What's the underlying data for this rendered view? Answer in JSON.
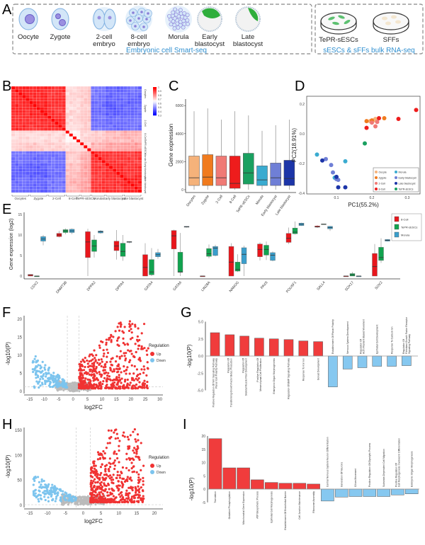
{
  "panels": {
    "A": "A",
    "B": "B",
    "C": "C",
    "D": "D",
    "E": "E",
    "F": "F",
    "G": "G",
    "H": "H",
    "I": "I"
  },
  "panel_a": {
    "stages": [
      {
        "line1": "Oocyte",
        "line2": ""
      },
      {
        "line1": "Zygote",
        "line2": ""
      },
      {
        "line1": "2-cell",
        "line2": "embryo"
      },
      {
        "line1": "8-cell",
        "line2": "embryo"
      },
      {
        "line1": "Morula",
        "line2": ""
      },
      {
        "line1": "Early",
        "line2": "blastocyst"
      },
      {
        "line1": "Late",
        "line2": "blastocyst"
      }
    ],
    "cultures": [
      "TePR-sESCs",
      "SFFs"
    ],
    "caption_left": "Embryonic cell Smart-seq",
    "caption_right": "sESCs & sFFs bulk RNA-seq",
    "caption_color": "#2f8fd0"
  },
  "chart_data": [
    {
      "id": "B",
      "type": "heatmap",
      "groups": [
        "Oocytes",
        "Zygote",
        "2-Cell",
        "8-Cell",
        "TePR-sESCs",
        "Morula",
        "Early blastocyst",
        "Late blastocyst"
      ],
      "group_sizes": [
        5,
        5,
        5,
        4,
        3,
        4,
        5,
        5
      ],
      "block_correlation": [
        [
          0.95,
          0.94,
          0.93,
          0.7,
          0.72,
          0.46,
          0.44,
          0.45
        ],
        [
          0.94,
          0.95,
          0.93,
          0.7,
          0.72,
          0.45,
          0.43,
          0.44
        ],
        [
          0.93,
          0.93,
          0.94,
          0.7,
          0.72,
          0.46,
          0.45,
          0.46
        ],
        [
          0.7,
          0.7,
          0.7,
          0.66,
          0.7,
          0.72,
          0.74,
          0.75
        ],
        [
          0.72,
          0.72,
          0.72,
          0.7,
          0.7,
          0.76,
          0.77,
          0.78
        ],
        [
          0.46,
          0.45,
          0.46,
          0.72,
          0.76,
          0.93,
          0.92,
          0.92
        ],
        [
          0.44,
          0.43,
          0.45,
          0.74,
          0.77,
          0.92,
          0.94,
          0.93
        ],
        [
          0.45,
          0.44,
          0.46,
          0.75,
          0.78,
          0.92,
          0.93,
          0.95
        ]
      ],
      "colorbar": {
        "ticks": [
          "1",
          "0.9",
          "0.8",
          "0.7",
          "0.6",
          "0.5",
          "0.4",
          "0.3"
        ],
        "range": [
          0.3,
          1
        ],
        "low": "#0000ff",
        "mid": "#ffffff",
        "high": "#ff0000"
      }
    },
    {
      "id": "C",
      "type": "box",
      "ylabel": "Gene expression",
      "yticks": [
        "0",
        "2000",
        "4000",
        "6000"
      ],
      "ylim": [
        0,
        6500
      ],
      "categories": [
        "Oocytes",
        "Zygote",
        "2-Cell",
        "8-Cell",
        "TePR-sESCs",
        "Morula",
        "Early blastocyst",
        "Late blastocyst"
      ],
      "colors": [
        "#f5b27a",
        "#f07b1e",
        "#f07a75",
        "#ee1c1c",
        "#1aa060",
        "#3aabd0",
        "#6f7fd6",
        "#1c35a8"
      ],
      "stats_min_q1_med_q3_max": [
        [
          0,
          300,
          850,
          2400,
          5600
        ],
        [
          0,
          300,
          900,
          2500,
          5800
        ],
        [
          0,
          300,
          850,
          2400,
          5000
        ],
        [
          0,
          100,
          450,
          2400,
          5600
        ],
        [
          0,
          400,
          1200,
          2600,
          5300
        ],
        [
          0,
          300,
          700,
          1700,
          4200
        ],
        [
          0,
          300,
          850,
          1900,
          4600
        ],
        [
          0,
          300,
          800,
          2100,
          5000
        ]
      ]
    },
    {
      "id": "D",
      "type": "scatter",
      "xlabel": "PC1(55.2%)",
      "ylabel": "PC2(18.91%)",
      "xticks": [
        "0.1",
        "0.2",
        "0.3"
      ],
      "yticks": [
        "0.2",
        "0.0",
        "-0.2",
        "-0.4"
      ],
      "xlim": [
        0.035,
        0.335
      ],
      "ylim": [
        -0.42,
        0.22
      ],
      "series": [
        {
          "name": "Oocyte",
          "color": "#f5b27a",
          "points": [
            [
              0.205,
              0.09
            ],
            [
              0.21,
              0.1
            ],
            [
              0.195,
              0.085
            ]
          ]
        },
        {
          "name": "Morula",
          "color": "#3aabd0",
          "points": [
            [
              0.045,
              -0.14
            ],
            [
              0.125,
              -0.185
            ],
            [
              0.095,
              -0.295
            ]
          ]
        },
        {
          "name": "Zygote",
          "color": "#f07b1e",
          "points": [
            [
              0.185,
              0.085
            ],
            [
              0.235,
              0.105
            ],
            [
              0.2,
              0.09
            ]
          ]
        },
        {
          "name": "Early blastocyst",
          "color": "#6f7fd6",
          "points": [
            [
              0.07,
              -0.17
            ],
            [
              0.085,
              -0.21
            ],
            [
              0.09,
              -0.26
            ],
            [
              0.105,
              -0.31
            ],
            [
              0.1,
              -0.305
            ]
          ]
        },
        {
          "name": "2-Cell",
          "color": "#f07a75",
          "points": [
            [
              0.2,
              0.075
            ],
            [
              0.215,
              0.08
            ],
            [
              0.21,
              0.05
            ]
          ]
        },
        {
          "name": "Late blastocyst",
          "color": "#1c35a8",
          "points": [
            [
              0.06,
              -0.18
            ],
            [
              0.1,
              -0.29
            ],
            [
              0.105,
              -0.36
            ],
            [
              0.125,
              -0.36
            ]
          ]
        },
        {
          "name": "8-Cell",
          "color": "#ee1c1c",
          "points": [
            [
              0.22,
              0.105
            ],
            [
              0.185,
              0.04
            ],
            [
              0.275,
              0.1
            ],
            [
              0.325,
              0.16
            ]
          ]
        },
        {
          "name": "TePR-sESCs",
          "color": "#1aa060",
          "points": [
            [
              0.18,
              -0.065
            ]
          ]
        }
      ]
    },
    {
      "id": "E",
      "type": "box",
      "ylabel": "Gene expression (log2)",
      "yticks": [
        "0",
        "5",
        "10",
        "15"
      ],
      "ylim": [
        0,
        15
      ],
      "genes": [
        "CDX2",
        "DNMT3B",
        "DPPA2",
        "DPPA4",
        "GATA4",
        "GATA6",
        "LIN28A",
        "NANOG",
        "PAX6",
        "POU5F1",
        "SALL4",
        "SOX17",
        "SOX2"
      ],
      "series": [
        {
          "name": "8-Cell",
          "color": "#e8161c",
          "stats_min_q1_med_q3_max": [
            [
              0,
              0,
              0.2,
              0.4,
              0.4
            ],
            [
              9.4,
              9.6,
              10,
              10.4,
              11
            ],
            [
              0,
              4.5,
              8.3,
              10.8,
              11.5
            ],
            [
              4,
              6.2,
              7.3,
              8.5,
              11.2
            ],
            [
              0,
              0,
              2.1,
              5.2,
              8
            ],
            [
              0,
              6.6,
              9.8,
              11.1,
              11.3
            ],
            [
              0,
              0,
              0,
              0,
              0
            ],
            [
              0,
              0,
              3.4,
              7.2,
              8
            ],
            [
              3.8,
              4.7,
              6.5,
              7.8,
              8.2
            ],
            [
              7.8,
              8.2,
              9.2,
              10.4,
              11.8
            ],
            [
              11.7,
              11.9,
              12,
              12.2,
              12.4
            ],
            [
              0,
              0,
              0,
              0,
              0
            ],
            [
              0,
              0,
              2.3,
              5.5,
              7.8
            ]
          ]
        },
        {
          "name": "TePR-sESCs",
          "color": "#11a34f",
          "stats_min_q1_med_q3_max": [
            [
              0,
              0,
              0,
              0,
              0
            ],
            [
              10.2,
              10.6,
              11,
              11.3,
              11.6
            ],
            [
              4.5,
              6,
              7.3,
              8.8,
              10
            ],
            [
              3.7,
              4.8,
              6,
              8,
              10
            ],
            [
              0,
              0.3,
              1,
              4,
              6.8
            ],
            [
              0,
              0.9,
              1,
              5.8,
              10.5
            ],
            [
              4.3,
              4.8,
              5.4,
              6.7,
              7.7
            ],
            [
              1,
              1.2,
              1.6,
              3.4,
              5.3
            ],
            [
              3.9,
              5.1,
              6.5,
              7.5,
              8.4
            ],
            [
              10.1,
              10.3,
              10.7,
              11.7,
              13.3
            ],
            [
              12.5,
              12.6,
              12.6,
              12.7,
              12.7
            ],
            [
              0,
              0,
              0.3,
              0.6,
              1
            ],
            [
              3.2,
              3.8,
              4.5,
              7,
              9.2
            ]
          ]
        },
        {
          "name": "Morula",
          "color": "#3a9ecb",
          "stats_min_q1_med_q3_max": [
            [
              7.5,
              8.5,
              9,
              9.6,
              10
            ],
            [
              10.2,
              10.6,
              11,
              11.4,
              11.6
            ],
            [
              10.3,
              10.5,
              10.8,
              11,
              11.2
            ],
            [
              8,
              8.2,
              8.3,
              8.4,
              8.5
            ],
            [
              4.2,
              4.7,
              5.2,
              5.7,
              6.6
            ],
            [
              11.8,
              11.9,
              12,
              12.1,
              12.1
            ],
            [
              4.8,
              5,
              6.8,
              7.2,
              7.6
            ],
            [
              0,
              3,
              5.3,
              6.9,
              7.4
            ],
            [
              3.6,
              3.8,
              5.1,
              5.7,
              6
            ],
            [
              12.2,
              12.3,
              12.6,
              12.9,
              13
            ],
            [
              11,
              11.5,
              11.8,
              12.1,
              12.2
            ],
            [
              0,
              0,
              0,
              0,
              0
            ],
            [
              8.4,
              8.5,
              8.7,
              8.9,
              9
            ]
          ]
        }
      ]
    },
    {
      "id": "F",
      "type": "scatter",
      "xlabel": "log2FC",
      "ylabel": "-log10(P)",
      "xticks": [
        "-15",
        "-10",
        "-5",
        "0",
        "5",
        "10",
        "15",
        "20",
        "25",
        "30"
      ],
      "yticks": [
        "0",
        "5",
        "10",
        "15",
        "20"
      ],
      "xlim": [
        -16.5,
        31
      ],
      "ylim": [
        0,
        20.5
      ],
      "fc_threshold": 2,
      "p_threshold": 1.3,
      "legend": {
        "title": "Regulation",
        "items": [
          {
            "name": "Up",
            "color": "#f03232"
          },
          {
            "name": "Down",
            "color": "#7cc4ee"
          }
        ]
      },
      "gray_color": "#bbbbbb"
    },
    {
      "id": "G",
      "type": "bar",
      "ylabel": "-log10(P)",
      "yticks": [
        "5.0",
        "2.5",
        "0.0",
        "-2.5",
        "-5.0"
      ],
      "ylim": [
        -5,
        5
      ],
      "bars": [
        {
          "label": [
            "Positive Regulation Of Wnt Signaling Pathway",
            "Planar Cell Polarity Pathway"
          ],
          "value": 3.4
        },
        {
          "label": [
            "Regulation Of",
            "Transforming Growth Factor Beta1 Production"
          ],
          "value": 3.1
        },
        {
          "label": [
            "Regulation Of",
            "Skeletal Muscle Fiber Development"
          ],
          "value": 2.9
        },
        {
          "label": [
            "Positive Regulation Of",
            "Mesenchymal Cell Proliferation"
          ],
          "value": 2.6
        },
        {
          "label": [
            "Embryonic Organ Morphogenesis"
          ],
          "value": 2.5
        },
        {
          "label": [
            "Regulation Of BMP Signaling Pathway"
          ],
          "value": 2.4
        },
        {
          "label": [
            "Response To Iron Ion"
          ],
          "value": 2.2
        },
        {
          "label": [
            "Gonad Development"
          ],
          "value": 2.1
        },
        {
          "label": [
            "Establishment Of Planar Polarity"
          ],
          "value": -4.5
        },
        {
          "label": [
            "Nervous System Development"
          ],
          "value": -1.9
        },
        {
          "label": [
            "Regulation Of",
            "Actin Filament-Based Movement"
          ],
          "value": -1.7
        },
        {
          "label": [
            "Epithelial Cell Development"
          ],
          "value": -1.5
        },
        {
          "label": [
            "Response To Calcium Ion"
          ],
          "value": -1.5
        },
        {
          "label": [
            "Regulation Of",
            "Fibroblast Growth Factor Receptor",
            "Signaling Pathway"
          ],
          "value": -1.4
        }
      ],
      "up_color": "#f03c3c",
      "down_color": "#86c8f0"
    },
    {
      "id": "H",
      "type": "scatter",
      "xlabel": "log2FC",
      "ylabel": "-log10(P)",
      "xticks": [
        "-15",
        "-10",
        "-5",
        "0",
        "5",
        "10",
        "15",
        "20"
      ],
      "yticks": [
        "0",
        "50",
        "100",
        "150"
      ],
      "xlim": [
        -16.5,
        22
      ],
      "ylim": [
        0,
        155
      ],
      "fc_threshold": 2,
      "p_threshold": 1.3,
      "legend": {
        "title": "Regulation",
        "items": [
          {
            "name": "Up",
            "color": "#f03232"
          },
          {
            "name": "Down",
            "color": "#7cc4ee"
          }
        ]
      },
      "gray_color": "#bbbbbb"
    },
    {
      "id": "I",
      "type": "bar",
      "ylabel": "-log10(P)",
      "yticks": [
        "20",
        "15",
        "10",
        "5",
        "0",
        "-5"
      ],
      "ylim": [
        -5,
        20
      ],
      "bars": [
        {
          "label": [
            "Translation"
          ],
          "value": 19
        },
        {
          "label": [
            "Oxidative Phosphorylation"
          ],
          "value": 8
        },
        {
          "label": [
            "Mitochondrial Gene Expression"
          ],
          "value": 8
        },
        {
          "label": [
            "ATP Biosynthetic Process"
          ],
          "value": 3.5
        },
        {
          "label": [
            "Epithelial Cell Morphogenesis"
          ],
          "value": 2.5
        },
        {
          "label": [
            "Establishment Of Endothelial Barrier"
          ],
          "value": 2.2
        },
        {
          "label": [
            "Cell Junction Maintenance"
          ],
          "value": 2.2
        },
        {
          "label": [
            "Ribosome Assembly"
          ],
          "value": 1.9
        },
        {
          "label": [
            "Central Nervous System Neuron Differentiation"
          ],
          "value": -4.5
        },
        {
          "label": [
            "Generation Of Neurons"
          ],
          "value": -3
        },
        {
          "label": [
            "Cilium Movement"
          ],
          "value": -2.8
        },
        {
          "label": [
            "Positive Regulation Of Glycolytic Process"
          ],
          "value": -2.8
        },
        {
          "label": [
            "Substrate-Dependent Cell Migration"
          ],
          "value": -2.8
        },
        {
          "label": [
            "Positive Regulation Of",
            "Cell Morphogenesis Involved In Differentiation"
          ],
          "value": -2.2
        },
        {
          "label": [
            "Embryonic Organ Morphogenesis"
          ],
          "value": -1.8
        }
      ],
      "up_color": "#f03c3c",
      "down_color": "#86c8f0"
    }
  ]
}
